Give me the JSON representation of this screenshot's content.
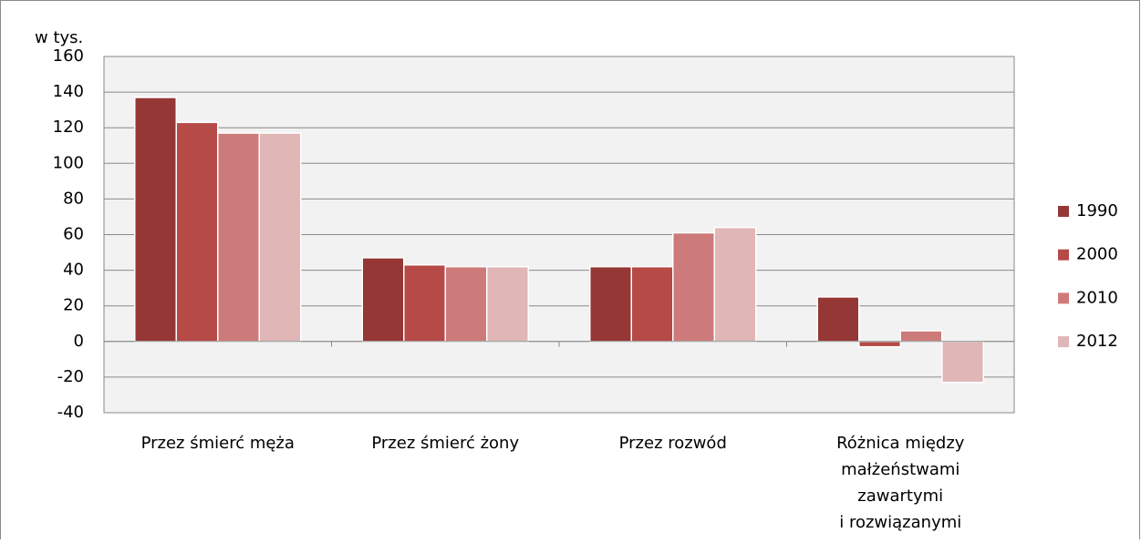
{
  "chart_data": {
    "type": "bar",
    "y_axis_label": "w tys.",
    "categories": [
      "Przez śmierć męża",
      "Przez śmierć żony",
      "Przez rozwód",
      "Różnica między\nmałżeństwami\nzawartymi\ni rozwiązanymi"
    ],
    "series": [
      {
        "name": "1990",
        "color": "#953735",
        "values": [
          137,
          47,
          42,
          25
        ]
      },
      {
        "name": "2000",
        "color": "#b64a47",
        "values": [
          123,
          43,
          42,
          -3
        ]
      },
      {
        "name": "2010",
        "color": "#cd7b7a",
        "values": [
          117,
          42,
          61,
          6
        ]
      },
      {
        "name": "2012",
        "color": "#e0b6b6",
        "values": [
          117,
          42,
          64,
          -23
        ]
      }
    ],
    "ylim": [
      -40,
      160
    ],
    "yticks": [
      -40,
      -20,
      0,
      20,
      40,
      60,
      80,
      100,
      120,
      140,
      160
    ],
    "grid": true,
    "legend": "right"
  }
}
